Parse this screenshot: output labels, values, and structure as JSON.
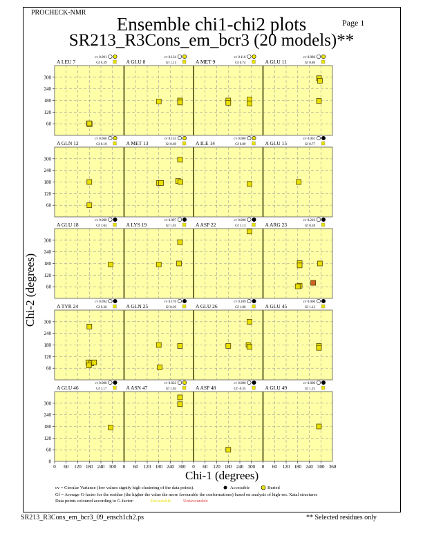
{
  "header": {
    "program": "PROCHECK-NMR",
    "page": "Page  1",
    "title": "Ensemble chi1-chi2 plots",
    "subtitle": "SR213_R3Cons_em_bcr3 (20 models)**"
  },
  "legend": {
    "cv_text": "cv = Circular Variance (low values signify high clustering of the data points).",
    "accessible": "Accessible",
    "buried": "Buried",
    "gf_text": "Gf = Average G-factor for the residue (the higher the value the more favourable the conformations)  based on analysis of high-res. Xatal structures",
    "colour_text": "Data points coloured according to G-factor:",
    "favourable": "Favourable",
    "unfavourable": "Unfavourable"
  },
  "footer": {
    "filename": "SR213_R3Cons_em_bcr3_09_ensch1ch2.ps",
    "note": "** Selected residues only"
  },
  "colors": {
    "plot_bg": "#ffffa8",
    "favourable": "#e8e000",
    "unfavourable": "#d06020",
    "border": "#6a6a30"
  },
  "chart_data": {
    "type": "scatter",
    "xlabel": "Chi-1 (degrees)",
    "ylabel": "Chi-2 (degrees)",
    "xlim": [
      0,
      360
    ],
    "ylim": [
      0,
      360
    ],
    "xticks": [
      "0",
      "60",
      "120",
      "180",
      "240",
      "300"
    ],
    "xtick_last": "360",
    "yticks": [
      "60",
      "120",
      "180",
      "240",
      "300"
    ],
    "ytick_zero": "0",
    "grid": true,
    "panels": [
      {
        "residue": "A LEU 7",
        "cv": "cv 0.001",
        "gf": "Gf  0.39",
        "buried": true,
        "points": [
          [
            178,
            60
          ],
          [
            182,
            58
          ],
          [
            180,
            62
          ]
        ]
      },
      {
        "residue": "A GLU 8",
        "cv": "cv 0.134",
        "gf": "Gf  1.11",
        "buried": true,
        "points": [
          [
            180,
            175
          ],
          [
            290,
            180
          ],
          [
            290,
            170
          ]
        ]
      },
      {
        "residue": "A MET 9",
        "cv": "cv 0.116",
        "gf": "Gf  0.74",
        "buried": true,
        "points": [
          [
            180,
            180
          ],
          [
            180,
            168
          ],
          [
            290,
            185
          ],
          [
            290,
            165
          ]
        ]
      },
      {
        "residue": "A GLU 11",
        "cv": "cv 0.086",
        "gf": "Gf  0.86",
        "buried": true,
        "points": [
          [
            290,
            295
          ],
          [
            295,
            282
          ],
          [
            290,
            178
          ]
        ]
      },
      {
        "residue": "A GLN 12",
        "cv": "cv 0.066",
        "gf": "Gf  0.19",
        "buried": true,
        "points": [
          [
            180,
            180
          ],
          [
            180,
            60
          ]
        ]
      },
      {
        "residue": "A MET 13",
        "cv": "cv 0.135",
        "gf": "Gf  0.69",
        "buried": true,
        "points": [
          [
            180,
            175
          ],
          [
            192,
            175
          ],
          [
            290,
            295
          ],
          [
            280,
            185
          ],
          [
            292,
            180
          ]
        ]
      },
      {
        "residue": "A ILE 14",
        "cv": "cv 0.000",
        "gf": "Gf  0.89",
        "buried": true,
        "points": [
          [
            290,
            170
          ]
        ]
      },
      {
        "residue": "A GLU 15",
        "cv": "cv 0.001",
        "gf": "Gf  0.77",
        "buried": false,
        "points": [
          [
            185,
            180
          ]
        ]
      },
      {
        "residue": "A GLU 18",
        "cv": "cv 0.000",
        "gf": "Gf  1.04",
        "buried": false,
        "points": [
          [
            290,
            175
          ]
        ]
      },
      {
        "residue": "A LYS 19",
        "cv": "cv 0.097",
        "gf": "Gf  1.01",
        "buried": false,
        "points": [
          [
            180,
            175
          ],
          [
            290,
            290
          ],
          [
            285,
            180
          ]
        ]
      },
      {
        "residue": "A ASP 22",
        "cv": "cv 0.000",
        "gf": "Gf  1.13",
        "buried": false,
        "points": [
          [
            290,
            345
          ]
        ]
      },
      {
        "residue": "A ARG 23",
        "cv": "cv 0.210",
        "gf": "Gf  0.28",
        "buried": false,
        "points": [
          [
            190,
            182
          ],
          [
            190,
            170
          ],
          [
            295,
            180
          ],
          [
            190,
            65
          ],
          [
            180,
            62
          ],
          [
            260,
            80,
            "u"
          ]
        ]
      },
      {
        "residue": "A TYR 24",
        "cv": "cv 0.094",
        "gf": "Gf  0.36",
        "buried": false,
        "points": [
          [
            180,
            275
          ],
          [
            175,
            90
          ],
          [
            190,
            85
          ],
          [
            205,
            90
          ],
          [
            178,
            75
          ]
        ]
      },
      {
        "residue": "A GLN 25",
        "cv": "cv 0.176",
        "gf": "Gf  0.29",
        "buried": false,
        "points": [
          [
            180,
            180
          ],
          [
            185,
            65
          ],
          [
            290,
            175
          ]
        ]
      },
      {
        "residue": "A GLU 26",
        "cv": "cv 0.109",
        "gf": "Gf  1.06",
        "buried": false,
        "points": [
          [
            180,
            175
          ],
          [
            290,
            300
          ],
          [
            285,
            180
          ],
          [
            290,
            170
          ]
        ]
      },
      {
        "residue": "A GLU 45",
        "cv": "cv 0.000",
        "gf": "Gf  1.13",
        "buried": false,
        "points": [
          [
            290,
            175
          ],
          [
            290,
            165
          ]
        ]
      },
      {
        "residue": "A GLU 46",
        "cv": "cv 0.000",
        "gf": "Gf  1.17",
        "buried": false,
        "points": [
          [
            290,
            175
          ]
        ]
      },
      {
        "residue": "A ASN 47",
        "cv": "cv 0.022",
        "gf": "Gf  1.02",
        "buried": true,
        "points": [
          [
            290,
            330
          ],
          [
            290,
            295
          ]
        ]
      },
      {
        "residue": "A ASP 48",
        "cv": "cv 0.000",
        "gf": "Gf -0.35",
        "buried": false,
        "points": [
          [
            180,
            60
          ]
        ]
      },
      {
        "residue": "A GLU 49",
        "cv": "cv 0.000",
        "gf": "Gf  1.25",
        "buried": false,
        "points": [
          [
            290,
            180
          ]
        ]
      }
    ]
  }
}
